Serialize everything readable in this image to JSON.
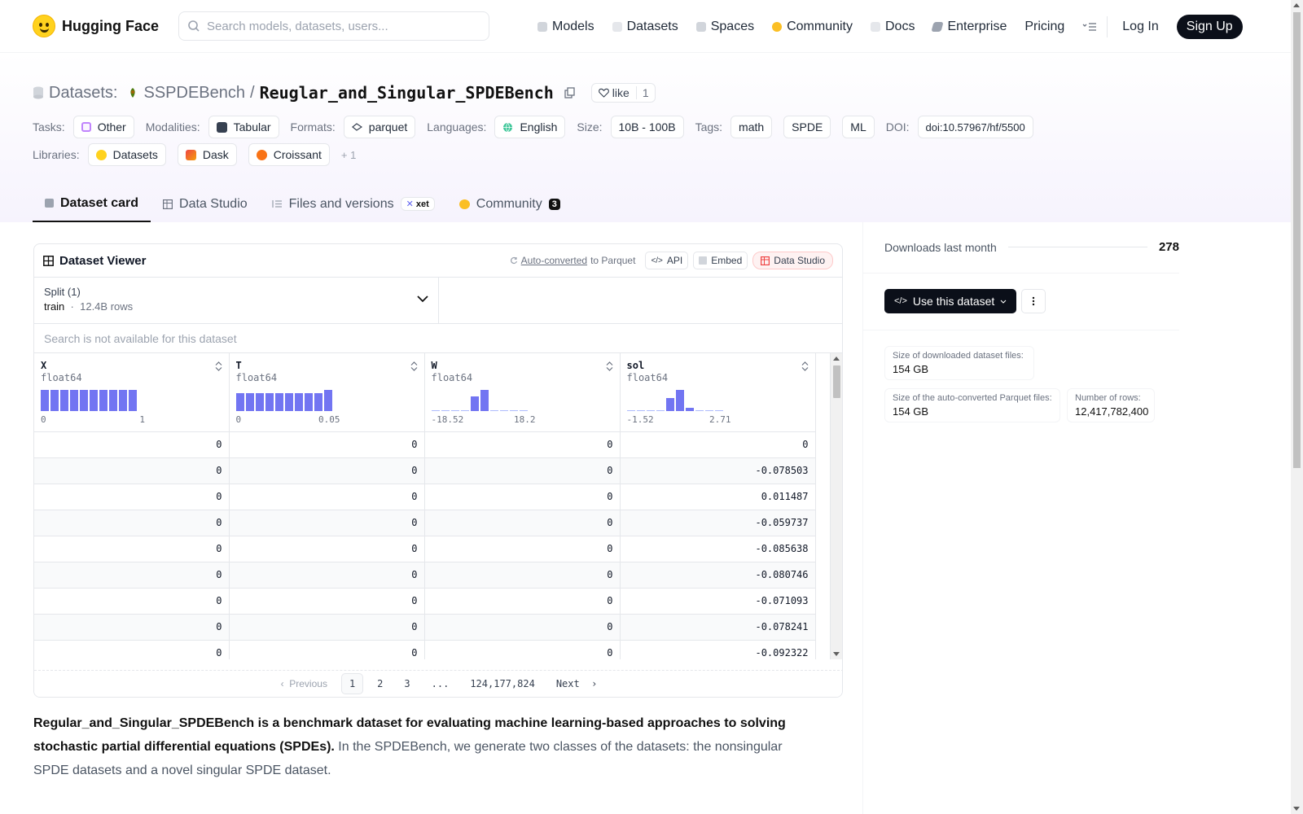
{
  "nav": {
    "brand": "Hugging Face",
    "search_placeholder": "Search models, datasets, users...",
    "links": [
      {
        "label": "Models",
        "icon": "cube-icon",
        "color": "#9ca3af"
      },
      {
        "label": "Datasets",
        "icon": "database-icon",
        "color": "#d1d5db"
      },
      {
        "label": "Spaces",
        "icon": "spaces-grid-icon",
        "color": "#9ca3af"
      },
      {
        "label": "Community",
        "icon": "community-icon",
        "color": "#fbbf24"
      },
      {
        "label": "Docs",
        "icon": "book-icon",
        "color": "#d1d5db"
      },
      {
        "label": "Enterprise",
        "icon": "enterprise-icon",
        "color": "#6b7280"
      },
      {
        "label": "Pricing"
      }
    ],
    "login": "Log In",
    "signup": "Sign Up"
  },
  "header": {
    "section": "Datasets:",
    "org": "SSPDEBench",
    "repo": "Reuglar_and_Singular_SPDEBench",
    "like_label": "like",
    "like_count": "1",
    "tasks_label": "Tasks:",
    "tasks": [
      "Other"
    ],
    "modalities_label": "Modalities:",
    "modalities": [
      "Tabular"
    ],
    "formats_label": "Formats:",
    "formats": [
      "parquet"
    ],
    "languages_label": "Languages:",
    "languages": [
      "English"
    ],
    "size_label": "Size:",
    "size": "10B - 100B",
    "tags_label": "Tags:",
    "tags": [
      "math",
      "SPDE",
      "ML"
    ],
    "doi_label": "DOI:",
    "doi": "doi:10.57967/hf/5500",
    "libraries_label": "Libraries:",
    "libraries": [
      "Datasets",
      "Dask",
      "Croissant"
    ],
    "libraries_more": "+ 1"
  },
  "tabs": {
    "dataset_card": "Dataset card",
    "data_studio": "Data Studio",
    "files": "Files and versions",
    "xet": "xet",
    "community": "Community",
    "community_count": "3"
  },
  "viewer": {
    "title": "Dataset Viewer",
    "auto_converted": "Auto-converted",
    "to_parquet": "to Parquet",
    "api": "API",
    "embed": "Embed",
    "data_studio": "Data Studio",
    "split_label": "Split (1)",
    "split_value": "train",
    "split_rows": "12.4B rows",
    "search_na": "Search is not available for this dataset",
    "columns": [
      {
        "name": "X",
        "type": "float64",
        "min": "0",
        "max": "1"
      },
      {
        "name": "T",
        "type": "float64",
        "min": "0",
        "max": "0.05"
      },
      {
        "name": "W",
        "type": "float64",
        "min": "-18.52",
        "max": "18.2"
      },
      {
        "name": "sol",
        "type": "float64",
        "min": "-1.52",
        "max": "2.71"
      }
    ],
    "rows": [
      [
        "0",
        "0",
        "0",
        "0"
      ],
      [
        "0",
        "0",
        "0",
        "-0.078503"
      ],
      [
        "0",
        "0",
        "0",
        "0.011487"
      ],
      [
        "0",
        "0",
        "0",
        "-0.059737"
      ],
      [
        "0",
        "0",
        "0",
        "-0.085638"
      ],
      [
        "0",
        "0",
        "0",
        "-0.080746"
      ],
      [
        "0",
        "0",
        "0",
        "-0.071093"
      ],
      [
        "0",
        "0",
        "0",
        "-0.078241"
      ],
      [
        "0",
        "0",
        "0",
        "-0.092322"
      ]
    ],
    "pager": {
      "previous": "Previous",
      "pages": [
        "1",
        "2",
        "3"
      ],
      "ellipsis": "...",
      "last": "124,177,824",
      "next": "Next"
    }
  },
  "description": {
    "bold": "Regular_and_Singular_SPDEBench is a benchmark dataset for evaluating machine learning-based approaches to solving stochastic partial differential equations (SPDEs).",
    "rest": " In the SPDEBench, we generate two classes of the datasets: the nonsingular SPDE datasets and a novel singular SPDE dataset."
  },
  "sidebar": {
    "downloads_label": "Downloads last month",
    "downloads_value": "278",
    "use_dataset": "Use this dataset",
    "stats": [
      {
        "label": "Size of downloaded dataset files:",
        "value": "154 GB"
      },
      {
        "label": "Size of the auto-converted Parquet files:",
        "value": "154 GB"
      },
      {
        "label": "Number of rows:",
        "value": "12,417,782,400"
      }
    ]
  },
  "colors": {
    "accent_dark": "#0b0f19",
    "histogram": "#6366f1",
    "logo_yellow": "#ffd21e"
  }
}
